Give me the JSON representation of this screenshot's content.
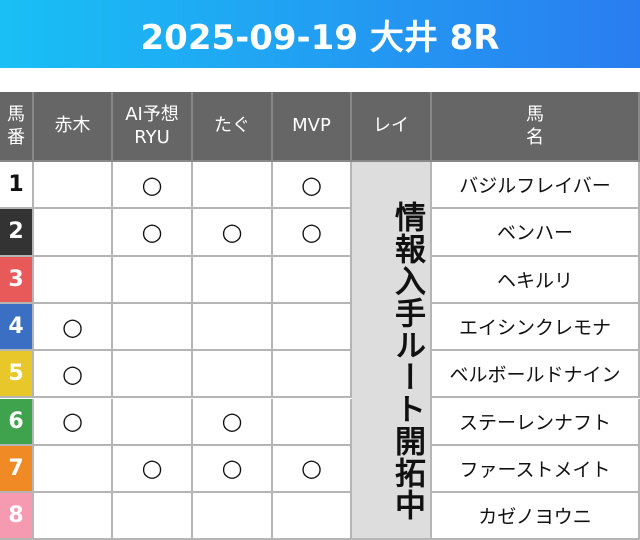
{
  "header": {
    "title": "2025-09-19 大井 8R"
  },
  "table": {
    "columns": [
      [
        "馬",
        "番"
      ],
      [
        "赤木"
      ],
      [
        "AI予想",
        "RYU"
      ],
      [
        "たぐ"
      ],
      [
        "MVP"
      ],
      [
        "レイ"
      ],
      [
        "馬",
        "名"
      ]
    ],
    "rei_note": "情報入手ルート開拓中",
    "rows": [
      {
        "number": 1,
        "marks": [
          null,
          "○",
          null,
          "○"
        ],
        "name": "バジルフレイバー"
      },
      {
        "number": 2,
        "marks": [
          null,
          "○",
          "○",
          "○"
        ],
        "name": "ベンハー"
      },
      {
        "number": 3,
        "marks": [
          null,
          null,
          null,
          null
        ],
        "name": "ヘキルリ"
      },
      {
        "number": 4,
        "marks": [
          "○",
          null,
          null,
          null
        ],
        "name": "エイシンクレモナ"
      },
      {
        "number": 5,
        "marks": [
          "○",
          null,
          null,
          null
        ],
        "name": "ベルボールドナイン"
      },
      {
        "number": 6,
        "marks": [
          "○",
          null,
          "○",
          null
        ],
        "name": "ステーレンナフト"
      },
      {
        "number": 7,
        "marks": [
          null,
          "○",
          "○",
          "○"
        ],
        "name": "ファーストメイト"
      },
      {
        "number": 8,
        "marks": [
          null,
          null,
          null,
          null
        ],
        "name": "カゼノヨウニ"
      }
    ]
  }
}
